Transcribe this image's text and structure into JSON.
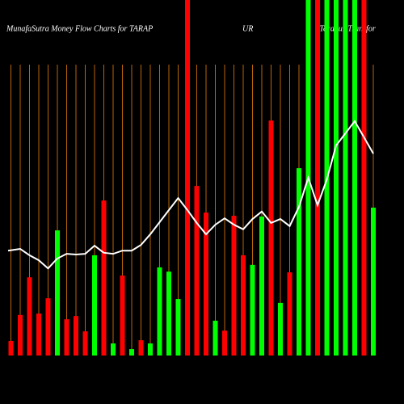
{
  "chart_data": {
    "type": "bar",
    "title": "MunafaSutra  Money Flow  Charts for TARAP",
    "title_mid": "UR",
    "title_right": "(Tarapur Transfor",
    "categories": [
      null,
      null,
      null,
      null,
      null,
      null,
      null,
      null,
      null,
      null,
      null,
      null,
      null,
      null,
      null,
      null,
      null,
      null,
      null,
      null,
      null,
      null,
      null,
      null,
      null,
      null,
      null,
      null,
      null,
      null,
      null,
      null,
      null,
      null,
      null,
      null,
      null,
      null,
      null,
      null
    ],
    "ylim": [
      0,
      100
    ],
    "values": [
      4.1,
      11.4,
      22.0,
      11.8,
      16.1,
      35.2,
      10.2,
      11.1,
      6.8,
      28.2,
      43.6,
      3.4,
      22.5,
      1.8,
      4.3,
      3.4,
      24.8,
      23.6,
      15.9,
      100,
      47.7,
      40.2,
      9.8,
      7.0,
      39.3,
      28.2,
      25.5,
      39.1,
      66.1,
      14.8,
      23.4,
      52.7,
      100,
      100,
      100,
      100,
      100,
      100,
      100,
      41.6
    ],
    "colors": [
      "#ff0000",
      "#ff0000",
      "#ff0000",
      "#ff0000",
      "#ff0000",
      "#00ff00",
      "#ff0000",
      "#ff0000",
      "#ff0000",
      "#00ff00",
      "#ff0000",
      "#00ff00",
      "#ff0000",
      "#00ff00",
      "#ff0000",
      "#00ff00",
      "#00ff00",
      "#00ff00",
      "#00ff00",
      "#ff0000",
      "#ff0000",
      "#ff0000",
      "#00ff00",
      "#ff0000",
      "#ff0000",
      "#ff0000",
      "#00ff00",
      "#00ff00",
      "#ff0000",
      "#00ff00",
      "#ff0000",
      "#00ff00",
      "#00ff00",
      "#ff0000",
      "#00ff00",
      "#00ff00",
      "#00ff00",
      "#00ff00",
      "#ff0000",
      "#00ff00"
    ],
    "line": {
      "color": "#ffffff",
      "values": [
        29.5,
        30.0,
        28.2,
        26.8,
        24.5,
        27.3,
        28.6,
        28.4,
        28.6,
        30.9,
        28.9,
        28.6,
        29.5,
        29.5,
        31.1,
        34.1,
        37.5,
        40.9,
        44.3,
        40.9,
        37.3,
        34.1,
        36.8,
        38.6,
        36.8,
        35.5,
        38.4,
        40.5,
        37.3,
        38.4,
        36.4,
        41.8,
        50.0,
        42.3,
        49.5,
        59.1,
        62.5,
        65.9,
        61.4,
        56.8
      ]
    },
    "gridline_color": "#b8650a"
  }
}
